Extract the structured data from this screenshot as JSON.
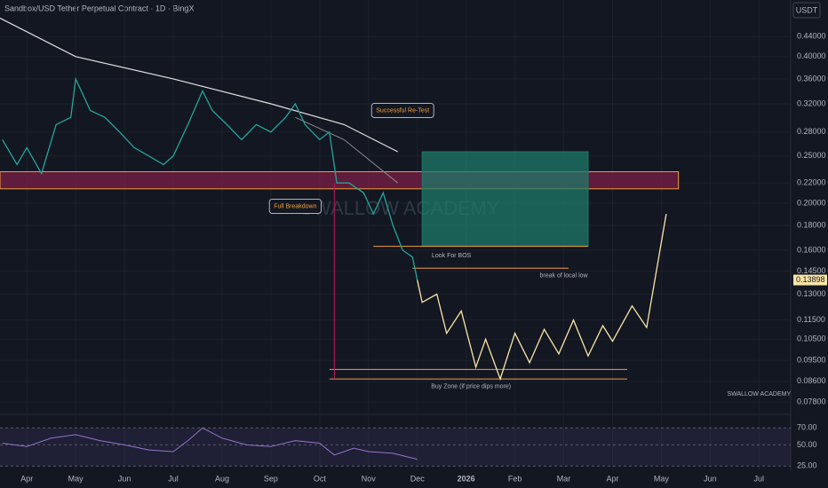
{
  "chart_data": {
    "type": "line",
    "title": "Sandbox/USD Tether Perpetual Contract · 1D · BingX",
    "currency": "USDT",
    "log_scale": true,
    "grid": true,
    "watermark": "SWALLOW ACADEMY",
    "last_price": 0.13898,
    "last_price_color": "#fbe5a6",
    "xlim": [
      -0.55,
      15.65
    ],
    "xticks": [
      {
        "value": 0,
        "label": "Apr"
      },
      {
        "value": 1,
        "label": "May"
      },
      {
        "value": 2,
        "label": "Jun"
      },
      {
        "value": 3,
        "label": "Jul"
      },
      {
        "value": 4,
        "label": "Aug"
      },
      {
        "value": 5,
        "label": "Sep"
      },
      {
        "value": 6,
        "label": "Oct"
      },
      {
        "value": 7,
        "label": "Nov"
      },
      {
        "value": 8,
        "label": "Dec"
      },
      {
        "value": 9,
        "label": "2026"
      },
      {
        "value": 10,
        "label": "Feb"
      },
      {
        "value": 11,
        "label": "Mar"
      },
      {
        "value": 12,
        "label": "Apr"
      },
      {
        "value": 13,
        "label": "May"
      },
      {
        "value": 14,
        "label": "Jun"
      },
      {
        "value": 15,
        "label": "Jul"
      }
    ],
    "ylim": [
      0.0742,
      0.523
    ],
    "yticks": [
      {
        "value": 0.44,
        "label": "0.44000"
      },
      {
        "value": 0.4,
        "label": "0.40000"
      },
      {
        "value": 0.36,
        "label": "0.36000"
      },
      {
        "value": 0.32,
        "label": "0.32000"
      },
      {
        "value": 0.28,
        "label": "0.28000"
      },
      {
        "value": 0.25,
        "label": "0.25000"
      },
      {
        "value": 0.22,
        "label": "0.22000"
      },
      {
        "value": 0.2,
        "label": "0.20000"
      },
      {
        "value": 0.18,
        "label": "0.18000"
      },
      {
        "value": 0.16,
        "label": "0.16000"
      },
      {
        "value": 0.145,
        "label": "0.14500"
      },
      {
        "value": 0.13,
        "label": "0.13000"
      },
      {
        "value": 0.115,
        "label": "0.11500"
      },
      {
        "value": 0.105,
        "label": "0.10500"
      },
      {
        "value": 0.095,
        "label": "0.09500"
      },
      {
        "value": 0.086,
        "label": "0.08600"
      },
      {
        "value": 0.078,
        "label": "0.07800"
      }
    ],
    "zones": [
      {
        "x": [
          -0.55,
          13.35
        ],
        "y": [
          0.214,
          0.232
        ],
        "color": "#7a1f45",
        "stroke": "#f0a040"
      },
      {
        "x": [
          8.1,
          11.5
        ],
        "y": [
          0.163,
          0.255
        ],
        "color": "#1f7a6a",
        "stroke": "#1f7a6a"
      }
    ],
    "hlines": [
      {
        "x": [
          7.1,
          11.5
        ],
        "y": 0.163,
        "color": "#f0a040"
      },
      {
        "x": [
          7.9,
          11.1
        ],
        "y": 0.147,
        "color": "#f0a040"
      },
      {
        "x": [
          6.2,
          12.3
        ],
        "y": 0.091,
        "color": "#f0a040"
      },
      {
        "x": [
          6.2,
          12.3
        ],
        "y": 0.087,
        "color": "#f0a040"
      }
    ],
    "vlines": [
      {
        "x": 6.3,
        "y": [
          0.22,
          0.087
        ],
        "color": "#c2185b"
      }
    ],
    "series": [
      {
        "color": "#e0e0e0",
        "width": 1.2,
        "x": [
          -0.55,
          1,
          3,
          5,
          6.5,
          7.6
        ],
        "values": [
          0.48,
          0.4,
          0.36,
          0.32,
          0.29,
          0.255
        ]
      },
      {
        "color": "#8a8a8a",
        "width": 1,
        "x": [
          5.5,
          6.5,
          7.6
        ],
        "values": [
          0.3,
          0.27,
          0.22
        ]
      },
      {
        "color": "#26a69a",
        "width": 1.3,
        "x": [
          -0.5,
          -0.2,
          0,
          0.3,
          0.6,
          0.9,
          1,
          1.3,
          1.6,
          1.9,
          2.2,
          2.5,
          2.8,
          3,
          3.3,
          3.6,
          3.8,
          4.1,
          4.4,
          4.7,
          5,
          5.3,
          5.5,
          5.7,
          6,
          6.2,
          6.35,
          6.6,
          6.9,
          7.1,
          7.3,
          7.5,
          7.7,
          7.9,
          8
        ],
        "values": [
          0.27,
          0.24,
          0.26,
          0.23,
          0.29,
          0.3,
          0.36,
          0.31,
          0.3,
          0.28,
          0.26,
          0.25,
          0.24,
          0.25,
          0.29,
          0.34,
          0.31,
          0.29,
          0.27,
          0.29,
          0.28,
          0.3,
          0.32,
          0.29,
          0.27,
          0.28,
          0.22,
          0.22,
          0.21,
          0.19,
          0.21,
          0.18,
          0.16,
          0.155,
          0.139
        ]
      },
      {
        "color": "#fbe5a6",
        "width": 1.3,
        "x": [
          8,
          8.1,
          8.4,
          8.6,
          8.9,
          9.2,
          9.4,
          9.7,
          10,
          10.3,
          10.6,
          10.9,
          11.2,
          11.5,
          11.8,
          12,
          12.4,
          12.7,
          13.1
        ],
        "values": [
          0.139,
          0.125,
          0.13,
          0.108,
          0.12,
          0.092,
          0.105,
          0.087,
          0.108,
          0.094,
          0.11,
          0.098,
          0.115,
          0.097,
          0.112,
          0.104,
          0.123,
          0.111,
          0.19
        ]
      }
    ],
    "annotations": [
      {
        "text": "Successful Re-Test",
        "x": 7.7,
        "y": 0.31,
        "boxed": true
      },
      {
        "text": "Full Breakdown",
        "x": 5.5,
        "y": 0.197,
        "boxed": true
      },
      {
        "text": "Look For BOS",
        "x": 8.7,
        "y": 0.156,
        "boxed": false
      },
      {
        "text": "break of local low",
        "x": 11,
        "y": 0.142,
        "boxed": false
      },
      {
        "text": "Buy Zone (if price dips more)",
        "x": 9.1,
        "y": 0.084,
        "boxed": false
      },
      {
        "text": "SWALLOW ACADEMY",
        "x": 15,
        "y": 0.081,
        "boxed": false
      }
    ],
    "rsi": {
      "ylim": [
        20,
        85
      ],
      "yticks": [
        {
          "value": 70,
          "label": "70.00"
        },
        {
          "value": 50,
          "label": "50.00"
        },
        {
          "value": 25,
          "label": "25.00"
        }
      ],
      "x": [
        -0.5,
        0,
        0.5,
        1,
        1.5,
        2,
        2.5,
        3,
        3.3,
        3.6,
        4,
        4.5,
        5,
        5.5,
        6,
        6.3,
        6.7,
        7,
        7.5,
        8
      ],
      "values": [
        52,
        48,
        58,
        62,
        55,
        50,
        44,
        42,
        55,
        70,
        58,
        50,
        48,
        55,
        52,
        38,
        46,
        42,
        40,
        33
      ]
    }
  }
}
